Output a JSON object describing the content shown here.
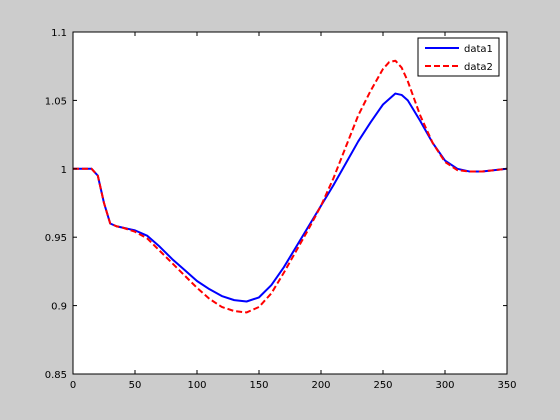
{
  "chart_data": {
    "type": "line",
    "xlim": [
      0,
      350
    ],
    "ylim": [
      0.85,
      1.1
    ],
    "x_ticks": [
      0,
      50,
      100,
      150,
      200,
      250,
      300,
      350
    ],
    "y_ticks": [
      0.85,
      0.9,
      0.95,
      1,
      1.05,
      1.1
    ],
    "x_tick_labels": [
      "0",
      "50",
      "100",
      "150",
      "200",
      "250",
      "300",
      "350"
    ],
    "y_tick_labels": [
      "0.85",
      "0.9",
      "0.95",
      "1",
      "1.05",
      "1.1"
    ],
    "grid": false,
    "legend_position": "top-right",
    "series": [
      {
        "name": "data1",
        "color": "#0000ff",
        "style": "solid",
        "x": [
          0,
          15,
          20,
          25,
          30,
          35,
          40,
          50,
          60,
          70,
          80,
          90,
          100,
          110,
          120,
          130,
          140,
          150,
          160,
          170,
          180,
          190,
          200,
          210,
          220,
          230,
          240,
          250,
          260,
          265,
          270,
          280,
          290,
          300,
          310,
          320,
          330,
          340,
          350
        ],
        "y": [
          1.0,
          1.0,
          0.995,
          0.975,
          0.96,
          0.958,
          0.957,
          0.955,
          0.951,
          0.943,
          0.934,
          0.926,
          0.918,
          0.912,
          0.907,
          0.904,
          0.903,
          0.906,
          0.915,
          0.928,
          0.943,
          0.958,
          0.973,
          0.988,
          1.004,
          1.02,
          1.034,
          1.047,
          1.055,
          1.054,
          1.05,
          1.035,
          1.019,
          1.006,
          1.0,
          0.998,
          0.998,
          0.999,
          1.0
        ]
      },
      {
        "name": "data2",
        "color": "#ff0000",
        "style": "dashed",
        "x": [
          0,
          15,
          20,
          25,
          30,
          35,
          40,
          50,
          60,
          70,
          80,
          90,
          100,
          110,
          120,
          130,
          140,
          150,
          160,
          170,
          180,
          190,
          200,
          210,
          220,
          230,
          240,
          250,
          255,
          260,
          265,
          270,
          280,
          290,
          300,
          310,
          320,
          330,
          340,
          350
        ],
        "y": [
          1.0,
          1.0,
          0.995,
          0.975,
          0.96,
          0.958,
          0.957,
          0.954,
          0.949,
          0.94,
          0.931,
          0.922,
          0.913,
          0.905,
          0.899,
          0.896,
          0.895,
          0.899,
          0.909,
          0.924,
          0.94,
          0.956,
          0.973,
          0.993,
          1.016,
          1.039,
          1.057,
          1.073,
          1.078,
          1.079,
          1.074,
          1.064,
          1.039,
          1.019,
          1.005,
          0.999,
          0.998,
          0.998,
          0.999,
          1.0
        ]
      }
    ]
  }
}
